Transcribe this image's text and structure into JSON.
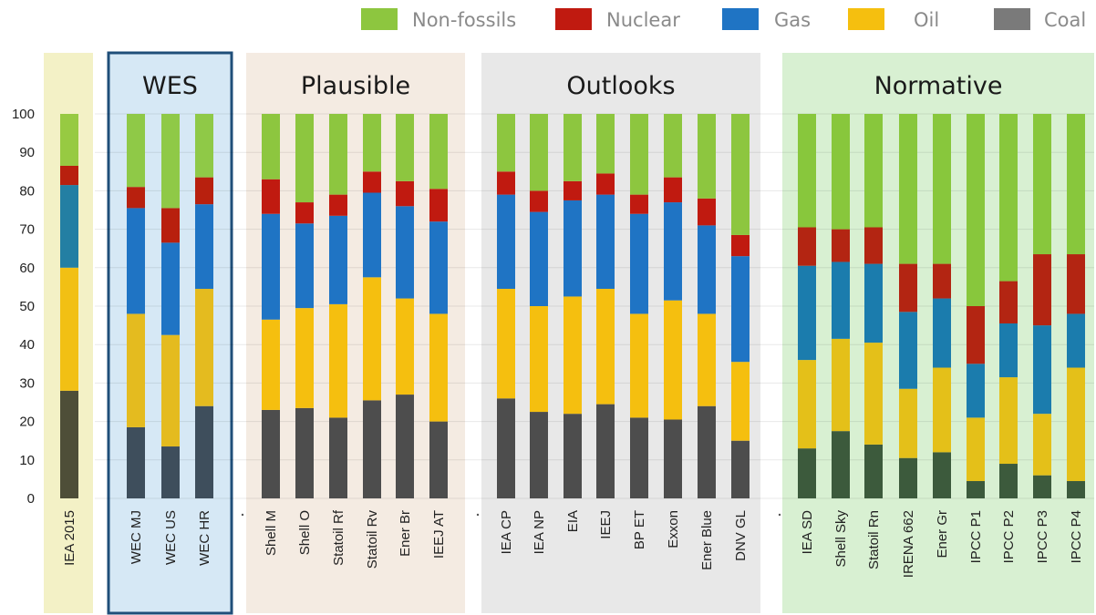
{
  "chart_data": {
    "type": "bar",
    "stacked": true,
    "yticks": [
      0,
      10,
      20,
      30,
      40,
      50,
      60,
      70,
      80,
      90,
      100
    ],
    "ylim": [
      0,
      100
    ],
    "grid": true,
    "legend": "top-right",
    "legend_order": [
      "Non-fossils",
      "Nuclear",
      "Gas",
      "Oil",
      "Coal"
    ],
    "series": [
      {
        "name": "Coal",
        "color": "#7a7a7a"
      },
      {
        "name": "Oil",
        "color": "#f5bf0f"
      },
      {
        "name": "Gas",
        "color": "#1f74c4"
      },
      {
        "name": "Nuclear",
        "color": "#c01a10"
      },
      {
        "name": "Non-fossils",
        "color": "#8dc63f"
      }
    ],
    "groups": [
      {
        "title": "",
        "bg": "#f3f1c6",
        "tint": [
          "#4e4e38",
          "#f2c014",
          "#237fa3",
          "#b8200e",
          "#97ca42"
        ],
        "bars": [
          {
            "label": "IEA 2015",
            "values": [
              28,
              32,
              21.5,
              5,
              13.5
            ]
          }
        ]
      },
      {
        "title": "WES",
        "bg": "#d6e8f5",
        "border": "#1f4e79",
        "tint": [
          "#3e4e5c",
          "#e4bb1f",
          "#1f74c4",
          "#b8200e",
          "#8fc947"
        ],
        "bars": [
          {
            "label": "WEC MJ",
            "values": [
              18.5,
              29.5,
              27.5,
              5.5,
              19
            ]
          },
          {
            "label": "WEC US",
            "values": [
              13.5,
              29,
              24,
              9,
              24.5
            ]
          },
          {
            "label": "WEC HR",
            "values": [
              24,
              30.5,
              22,
              7,
              16.5
            ]
          }
        ]
      },
      {
        "title": "Plausible",
        "bg": "#f4ebe2",
        "tint": [
          "#4d4d4d",
          "#f5bf0f",
          "#1f74c4",
          "#c01a10",
          "#8dc63f"
        ],
        "bars": [
          {
            "label": "Shell M",
            "values": [
              23,
              23.5,
              27.5,
              9,
              17
            ]
          },
          {
            "label": "Shell O",
            "values": [
              23.5,
              26,
              22,
              5.5,
              23
            ]
          },
          {
            "label": "Statoil Rf",
            "values": [
              21,
              29.5,
              23,
              5.5,
              21
            ]
          },
          {
            "label": "Statoil Rv",
            "values": [
              25.5,
              32,
              22,
              5.5,
              15
            ]
          },
          {
            "label": "Ener Br",
            "values": [
              27,
              25,
              24,
              6.5,
              17.5
            ]
          },
          {
            "label": "IEEJ AT",
            "values": [
              20,
              28,
              24,
              8.5,
              19.5
            ]
          }
        ]
      },
      {
        "title": "Outlooks",
        "bg": "#e8e8e8",
        "tint": [
          "#4d4d4d",
          "#f5bf0f",
          "#1f74c4",
          "#c01a10",
          "#8dc63f"
        ],
        "bars": [
          {
            "label": "IEA CP",
            "values": [
              26,
              28.5,
              24.5,
              6,
              15
            ]
          },
          {
            "label": "IEA NP",
            "values": [
              22.5,
              27.5,
              24.5,
              5.5,
              20
            ]
          },
          {
            "label": "EIA",
            "values": [
              22,
              30.5,
              25,
              5,
              17.5
            ]
          },
          {
            "label": "IEEJ",
            "values": [
              24.5,
              30,
              24.5,
              5.5,
              15.5
            ]
          },
          {
            "label": "BP ET",
            "values": [
              21,
              27,
              26,
              5,
              21
            ]
          },
          {
            "label": "Exxon",
            "values": [
              20.5,
              31,
              25.5,
              6.5,
              16.5
            ]
          },
          {
            "label": "Ener Blue",
            "values": [
              24,
              24,
              23,
              7,
              22
            ]
          },
          {
            "label": "DNV GL",
            "values": [
              15,
              20.5,
              27.5,
              5.5,
              31.5
            ]
          }
        ]
      },
      {
        "title": "Normative",
        "bg": "#d8f0d2",
        "tint": [
          "#3c5a3c",
          "#e4c019",
          "#1b7cad",
          "#b32512",
          "#88c73c"
        ],
        "bars": [
          {
            "label": "IEA SD",
            "values": [
              13,
              23,
              24.5,
              10,
              29.5
            ]
          },
          {
            "label": "Shell Sky",
            "values": [
              17.5,
              24,
              20,
              8.5,
              30
            ]
          },
          {
            "label": "Statoil Rn",
            "values": [
              14,
              26.5,
              20.5,
              9.5,
              29.5
            ]
          },
          {
            "label": "IRENA 662",
            "values": [
              10.5,
              18,
              20,
              12.5,
              39
            ]
          },
          {
            "label": "Ener Gr",
            "values": [
              12,
              22,
              18,
              9,
              39
            ]
          },
          {
            "label": "IPCC P1",
            "values": [
              4.5,
              16.5,
              14,
              15,
              50
            ]
          },
          {
            "label": "IPCC P2",
            "values": [
              9,
              22.5,
              14,
              11,
              43.5
            ]
          },
          {
            "label": "IPCC P3",
            "values": [
              6,
              16,
              23,
              18.5,
              36.5
            ]
          },
          {
            "label": "IPCC P4",
            "values": [
              4.5,
              29.5,
              14,
              15.5,
              36.5
            ]
          }
        ]
      }
    ]
  }
}
